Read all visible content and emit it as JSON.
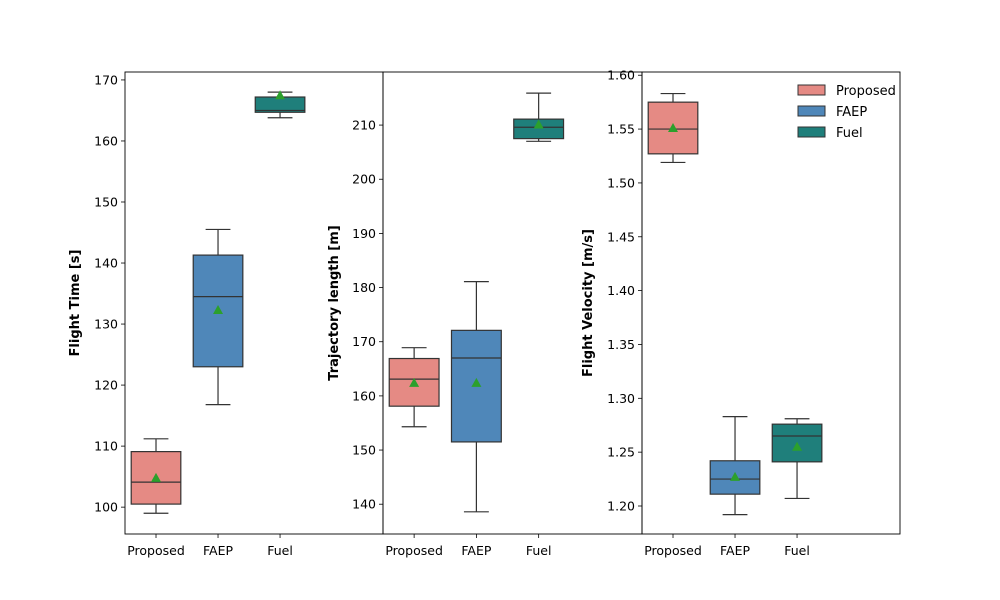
{
  "chart_data": [
    {
      "type": "box",
      "ylabel": "Flight Time [s]",
      "categories": [
        "Proposed",
        "FAEP",
        "Fuel"
      ],
      "ylim": [
        95.6,
        171.3
      ],
      "yticks": [
        "100",
        "110",
        "120",
        "130",
        "140",
        "150",
        "160",
        "170"
      ],
      "series": [
        {
          "name": "Proposed",
          "whislo": 99.0,
          "q1": 100.5,
          "median": 104.1,
          "q3": 109.1,
          "whishi": 111.2,
          "mean": 104.8
        },
        {
          "name": "FAEP",
          "whislo": 116.8,
          "q1": 123.0,
          "median": 134.5,
          "q3": 141.3,
          "whishi": 145.5,
          "mean": 132.3
        },
        {
          "name": "Fuel",
          "whislo": 163.8,
          "q1": 164.7,
          "median": 165.0,
          "q3": 167.2,
          "whishi": 168.0,
          "mean": 167.5
        }
      ]
    },
    {
      "type": "box",
      "ylabel": "Trajectory length [m]",
      "categories": [
        "Proposed",
        "FAEP",
        "Fuel"
      ],
      "ylim": [
        134.5,
        219.8
      ],
      "yticks": [
        "140",
        "150",
        "160",
        "170",
        "180",
        "190",
        "200",
        "210"
      ],
      "series": [
        {
          "name": "Proposed",
          "whislo": 154.3,
          "q1": 158.1,
          "median": 163.1,
          "q3": 166.9,
          "whishi": 168.9,
          "mean": 162.4
        },
        {
          "name": "FAEP",
          "whislo": 138.6,
          "q1": 151.5,
          "median": 167.0,
          "q3": 172.1,
          "whishi": 181.1,
          "mean": 162.4
        },
        {
          "name": "Fuel",
          "whislo": 207.0,
          "q1": 207.5,
          "median": 209.6,
          "q3": 211.1,
          "whishi": 215.9,
          "mean": 210.1
        }
      ]
    },
    {
      "type": "box",
      "ylabel": "Flight Velocity [m/s]",
      "categories": [
        "Proposed",
        "FAEP",
        "Fuel"
      ],
      "ylim": [
        1.174,
        1.603
      ],
      "yticks": [
        "1.20",
        "1.25",
        "1.30",
        "1.35",
        "1.40",
        "1.45",
        "1.50",
        "1.55",
        "1.60"
      ],
      "legend": {
        "placement": "top-right",
        "entries": [
          "Proposed",
          "FAEP",
          "Fuel"
        ]
      },
      "series": [
        {
          "name": "Proposed",
          "whislo": 1.519,
          "q1": 1.527,
          "median": 1.55,
          "q3": 1.575,
          "whishi": 1.583,
          "mean": 1.551
        },
        {
          "name": "FAEP",
          "whislo": 1.192,
          "q1": 1.211,
          "median": 1.225,
          "q3": 1.242,
          "whishi": 1.283,
          "mean": 1.227
        },
        {
          "name": "Fuel",
          "whislo": 1.207,
          "q1": 1.241,
          "median": 1.265,
          "q3": 1.276,
          "whishi": 1.281,
          "mean": 1.255
        }
      ]
    }
  ],
  "colors": {
    "Proposed": "#e58a84",
    "FAEP": "#4f87b9",
    "Fuel": "#1f7f7b",
    "mean": "#2ca02c",
    "line": "#333333"
  }
}
